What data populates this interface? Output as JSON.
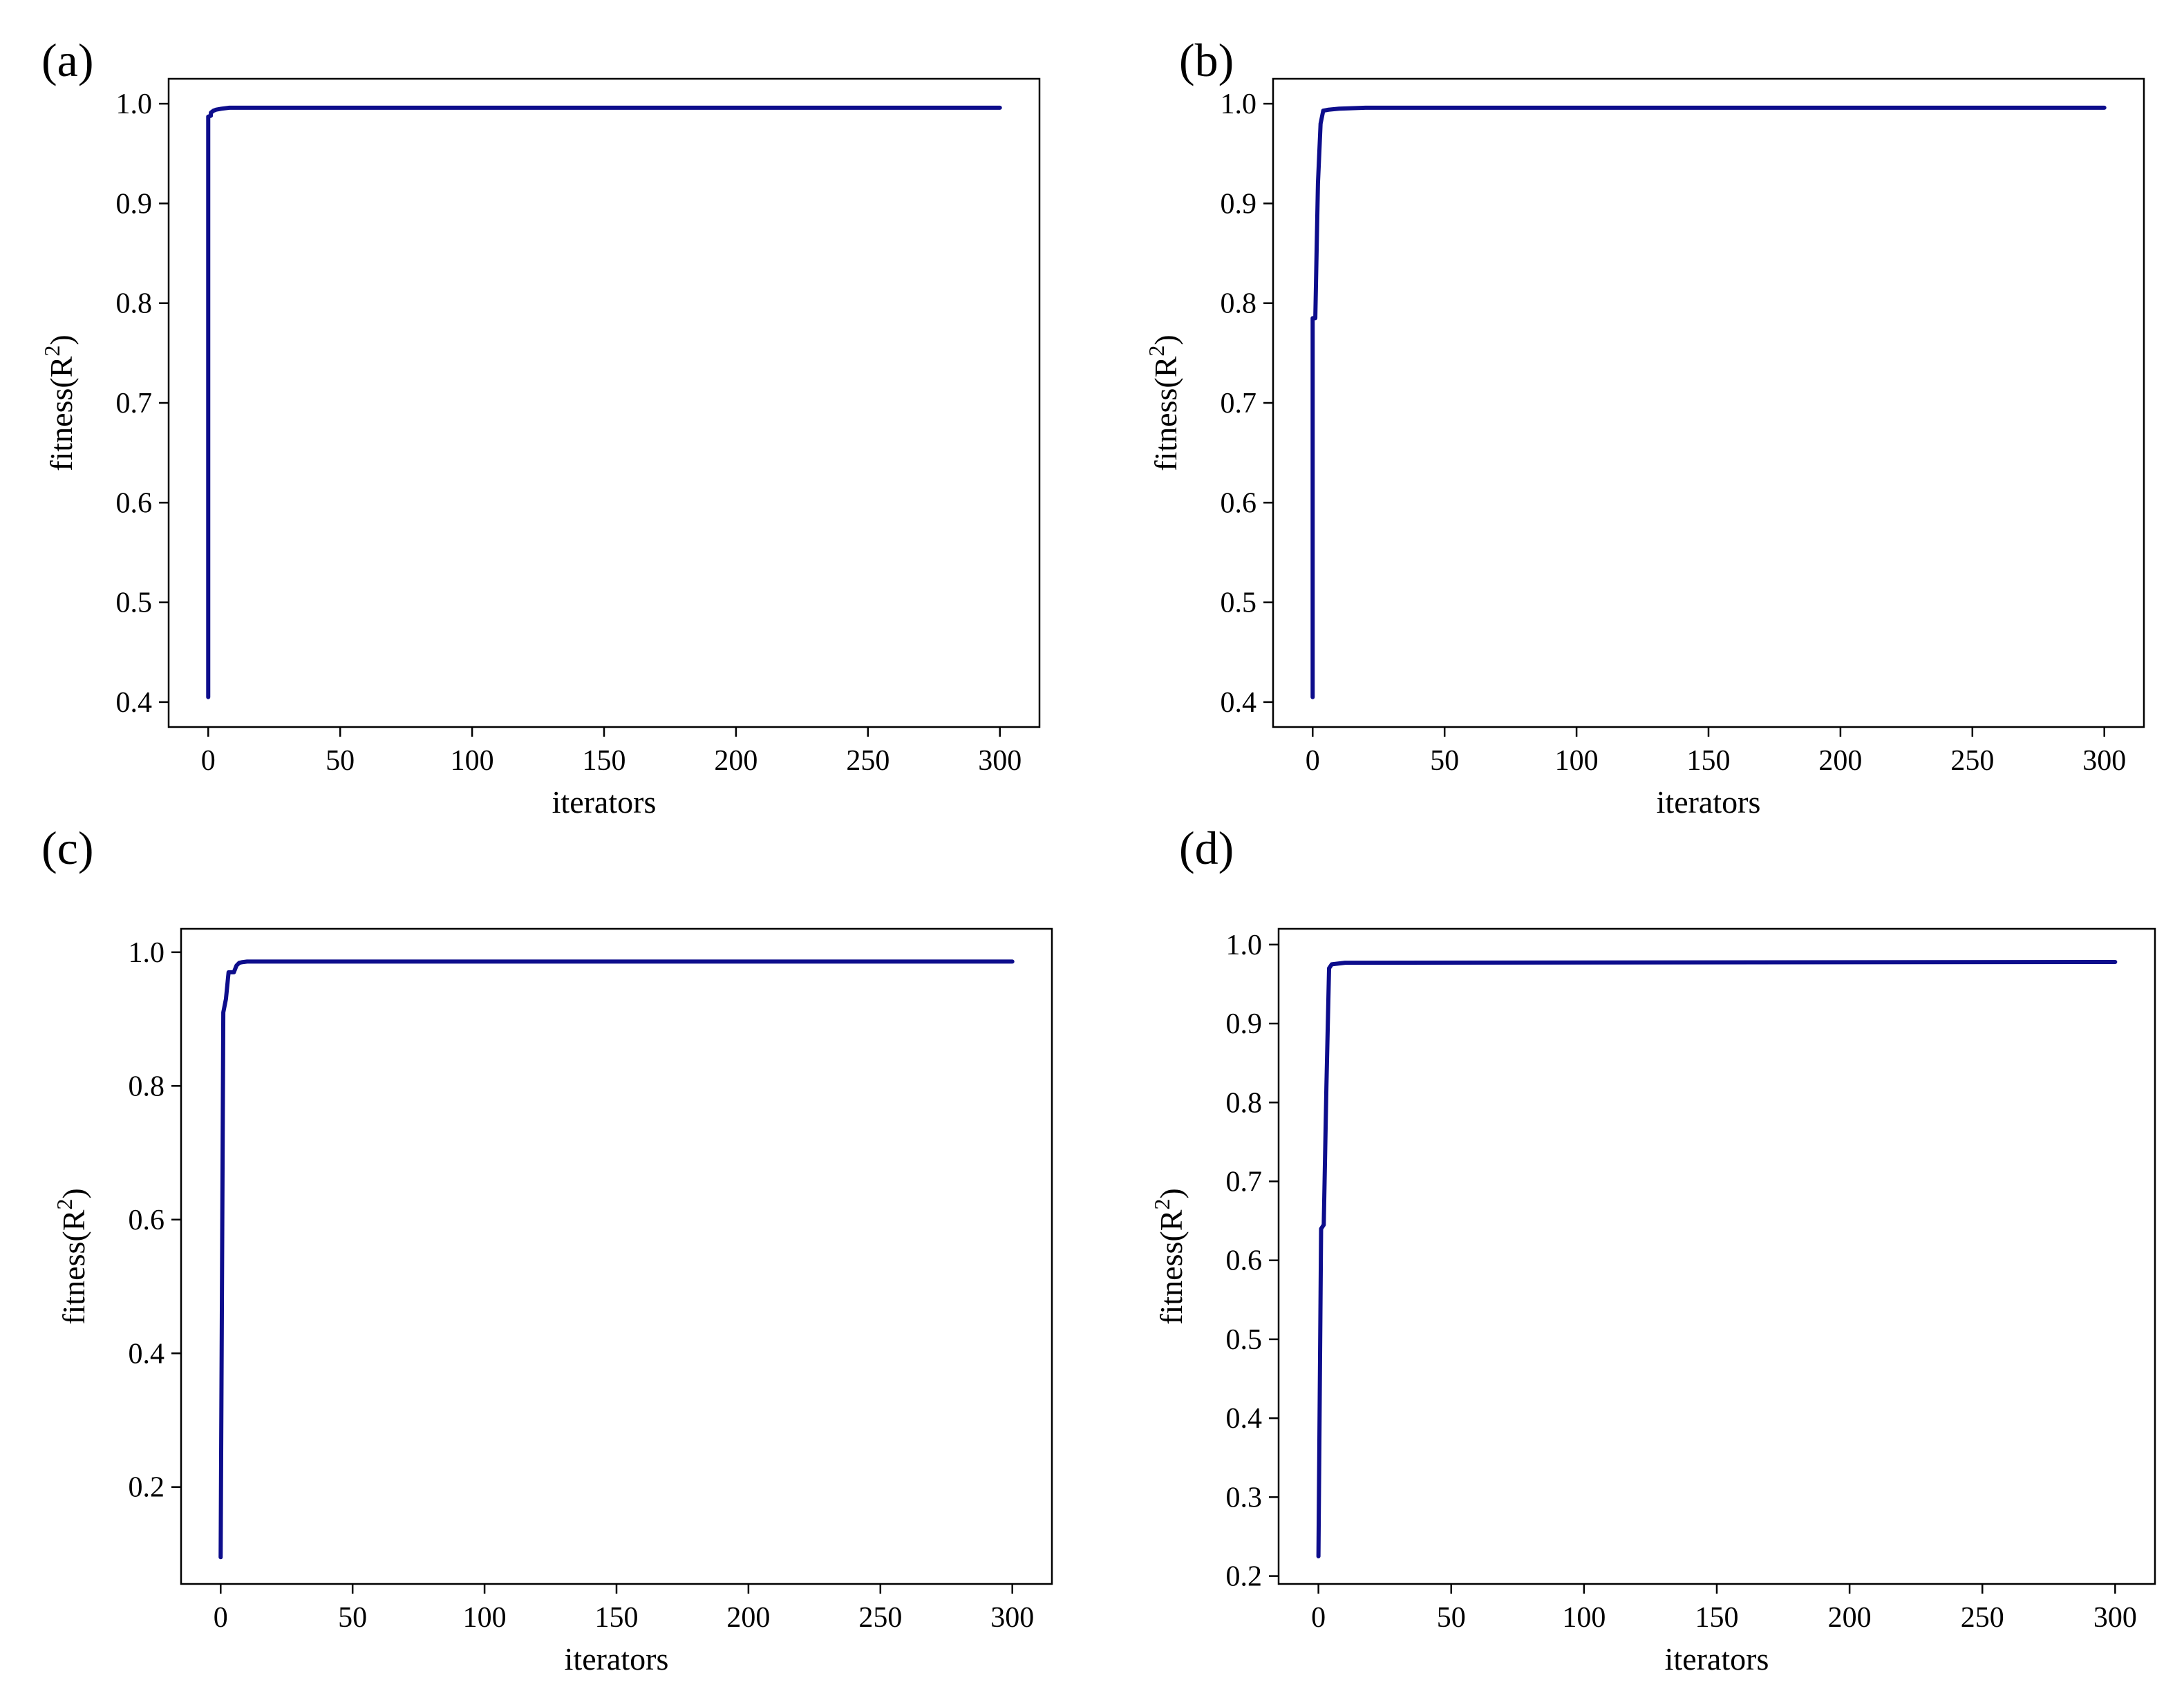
{
  "colors": {
    "line": "#0d0d8c"
  },
  "chart_data": [
    {
      "type": "line",
      "panel_label": "(a)",
      "xlabel": "iterators",
      "ylabel": "fitness(R",
      "ylabel_sup": "2",
      "ylabel_suffix": ")",
      "xlim": [
        -15,
        315
      ],
      "ylim": [
        0.375,
        1.025
      ],
      "x_ticks": [
        0,
        50,
        100,
        150,
        200,
        250,
        300
      ],
      "x_tick_labels": [
        "0",
        "50",
        "100",
        "150",
        "200",
        "250",
        "300"
      ],
      "y_ticks": [
        0.4,
        0.5,
        0.6,
        0.7,
        0.8,
        0.9,
        1.0
      ],
      "y_tick_labels": [
        "0.4",
        "0.5",
        "0.6",
        "0.7",
        "0.8",
        "0.9",
        "1.0"
      ],
      "series": [
        {
          "x": [
            0,
            0,
            1,
            1,
            2,
            3,
            5,
            8,
            15,
            50,
            300
          ],
          "y": [
            0.405,
            0.987,
            0.988,
            0.991,
            0.993,
            0.994,
            0.995,
            0.996,
            0.996,
            0.996,
            0.996
          ]
        }
      ]
    },
    {
      "type": "line",
      "panel_label": "(b)",
      "xlabel": "iterators",
      "ylabel": "fitness(R",
      "ylabel_sup": "2",
      "ylabel_suffix": ")",
      "xlim": [
        -15,
        315
      ],
      "ylim": [
        0.375,
        1.025
      ],
      "x_ticks": [
        0,
        50,
        100,
        150,
        200,
        250,
        300
      ],
      "x_tick_labels": [
        "0",
        "50",
        "100",
        "150",
        "200",
        "250",
        "300"
      ],
      "y_ticks": [
        0.4,
        0.5,
        0.6,
        0.7,
        0.8,
        0.9,
        1.0
      ],
      "y_tick_labels": [
        "0.4",
        "0.5",
        "0.6",
        "0.7",
        "0.8",
        "0.9",
        "1.0"
      ],
      "series": [
        {
          "x": [
            0,
            0,
            1,
            1,
            2,
            3,
            4,
            6,
            10,
            20,
            300
          ],
          "y": [
            0.405,
            0.785,
            0.785,
            0.785,
            0.92,
            0.98,
            0.993,
            0.994,
            0.995,
            0.996,
            0.996
          ]
        }
      ]
    },
    {
      "type": "line",
      "panel_label": "(c)",
      "xlabel": "iterators",
      "ylabel": "fitness(R",
      "ylabel_sup": "2",
      "ylabel_suffix": ")",
      "xlim": [
        -15,
        315
      ],
      "ylim": [
        0.055,
        1.035
      ],
      "x_ticks": [
        0,
        50,
        100,
        150,
        200,
        250,
        300
      ],
      "x_tick_labels": [
        "0",
        "50",
        "100",
        "150",
        "200",
        "250",
        "300"
      ],
      "y_ticks": [
        0.2,
        0.4,
        0.6,
        0.8,
        1.0
      ],
      "y_tick_labels": [
        "0.2",
        "0.4",
        "0.6",
        "0.8",
        "1.0"
      ],
      "series": [
        {
          "x": [
            0,
            1,
            2,
            3,
            4,
            5,
            6,
            7,
            8,
            10,
            15,
            300
          ],
          "y": [
            0.095,
            0.91,
            0.93,
            0.97,
            0.97,
            0.97,
            0.98,
            0.984,
            0.985,
            0.986,
            0.986,
            0.986
          ]
        }
      ]
    },
    {
      "type": "line",
      "panel_label": "(d)",
      "xlabel": "iterators",
      "ylabel": "fitness(R",
      "ylabel_sup": "2",
      "ylabel_suffix": ")",
      "xlim": [
        -15,
        315
      ],
      "ylim": [
        0.19,
        1.02
      ],
      "x_ticks": [
        0,
        50,
        100,
        150,
        200,
        250,
        300
      ],
      "x_tick_labels": [
        "0",
        "50",
        "100",
        "150",
        "200",
        "250",
        "300"
      ],
      "y_ticks": [
        0.2,
        0.3,
        0.4,
        0.5,
        0.6,
        0.7,
        0.8,
        0.9,
        1.0
      ],
      "y_tick_labels": [
        "0.2",
        "0.3",
        "0.4",
        "0.5",
        "0.6",
        "0.7",
        "0.8",
        "0.9",
        "1.0"
      ],
      "series": [
        {
          "x": [
            0,
            1,
            1,
            2,
            2,
            3,
            4,
            5,
            10,
            300
          ],
          "y": [
            0.225,
            0.64,
            0.64,
            0.645,
            0.645,
            0.82,
            0.97,
            0.975,
            0.977,
            0.978
          ]
        }
      ]
    }
  ]
}
